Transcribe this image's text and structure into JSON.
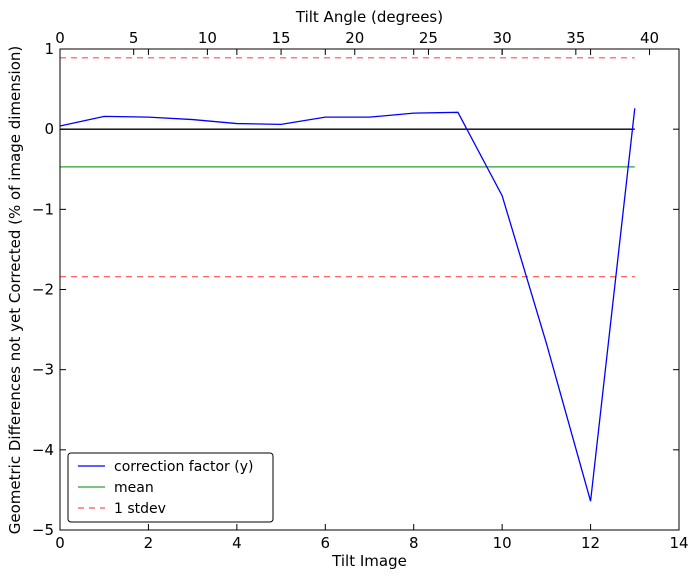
{
  "chart_data": {
    "type": "line",
    "xlabel": "Tilt Image",
    "ylabel": "Geometric Differences not yet Corrected (% of image dimension)",
    "x2label": "Tilt Angle (degrees)",
    "xlim": [
      0,
      14
    ],
    "ylim": [
      -5,
      1
    ],
    "x2lim": [
      0,
      42
    ],
    "xticks": [
      0,
      2,
      4,
      6,
      8,
      10,
      12,
      14
    ],
    "yticks": [
      -5,
      -4,
      -3,
      -2,
      -1,
      0,
      1
    ],
    "x2ticks": [
      0,
      5,
      10,
      15,
      20,
      25,
      30,
      35,
      40
    ],
    "xtick_labels": [
      "0",
      "2",
      "4",
      "6",
      "8",
      "10",
      "12",
      "14"
    ],
    "ytick_labels": [
      "−5",
      "−4",
      "−3",
      "−2",
      "−1",
      "0",
      "1"
    ],
    "x2tick_labels": [
      "0",
      "5",
      "10",
      "15",
      "20",
      "25",
      "30",
      "35",
      "40"
    ],
    "grid": false,
    "legend_position": "lower-left",
    "series": [
      {
        "name": "correction factor (y)",
        "style": "solid",
        "color": "#0000ff",
        "x": [
          0,
          1,
          2,
          3,
          4,
          5,
          6,
          7,
          8,
          9,
          10,
          11,
          12,
          13
        ],
        "y": [
          0.04,
          0.16,
          0.15,
          0.12,
          0.07,
          0.06,
          0.15,
          0.15,
          0.2,
          0.21,
          -0.83,
          -2.67,
          -4.64,
          0.26
        ]
      },
      {
        "name": "zero",
        "style": "solid",
        "color": "#000000",
        "x": [
          0,
          13
        ],
        "y": [
          0,
          0
        ],
        "in_legend": false
      },
      {
        "name": "mean",
        "style": "solid",
        "color": "#2ca02c",
        "x": [
          0,
          13
        ],
        "y": [
          -0.47,
          -0.47
        ]
      },
      {
        "name": "1 stdev",
        "style": "dashed",
        "color": "#ff5050",
        "x": [
          0,
          13
        ],
        "y": [
          0.89,
          0.89
        ]
      },
      {
        "name": "1 stdev lower",
        "style": "dashed",
        "color": "#ff5050",
        "x": [
          0,
          13
        ],
        "y": [
          -1.84,
          -1.84
        ],
        "in_legend": false
      }
    ]
  }
}
